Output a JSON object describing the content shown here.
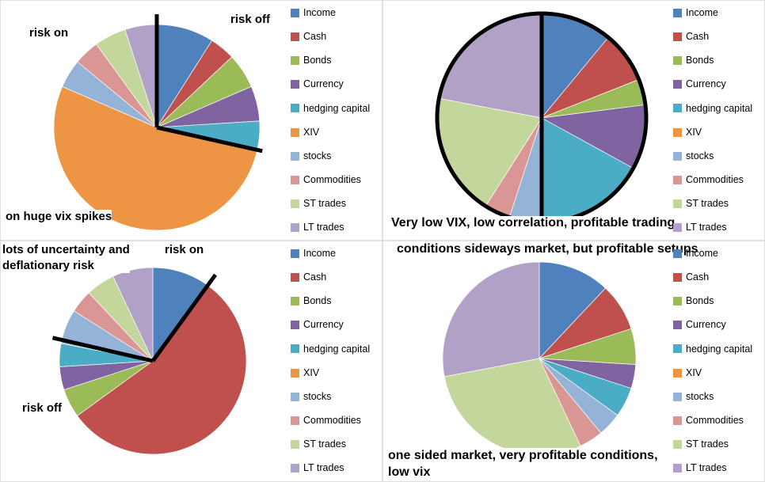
{
  "legend": {
    "position": "right",
    "items": [
      {
        "label": "Income",
        "color": "#4F81BD"
      },
      {
        "label": "Cash",
        "color": "#C0504D"
      },
      {
        "label": "Bonds",
        "color": "#9BBB59"
      },
      {
        "label": "Currency",
        "color": "#8064A2"
      },
      {
        "label": "hedging capital",
        "color": "#4BACC6"
      },
      {
        "label": "XIV",
        "color": "#ED9544"
      },
      {
        "label": "stocks",
        "color": "#95B3D7"
      },
      {
        "label": "Commodities",
        "color": "#D99694"
      },
      {
        "label": "ST trades",
        "color": "#C3D69B"
      },
      {
        "label": "LT trades",
        "color": "#B2A1C7"
      }
    ]
  },
  "chart_data": [
    {
      "type": "pie",
      "position": "top-left",
      "categories": [
        "Income",
        "Cash",
        "Bonds",
        "Currency",
        "hedging capital",
        "XIV",
        "stocks",
        "Commodities",
        "ST trades",
        "LT trades"
      ],
      "values": [
        9,
        4,
        5.5,
        5.5,
        4.5,
        53,
        4.5,
        4,
        5,
        5
      ],
      "legend_position": "right",
      "outline_circle": false,
      "marker_lines": [
        {
          "angle_deg": 0,
          "len": 1.1
        },
        {
          "angle_deg": 102.6,
          "len": 1.05
        }
      ],
      "annotations": {
        "risk_on": "risk on",
        "risk_off": "risk off",
        "caption": "on huge vix spikes"
      }
    },
    {
      "type": "pie",
      "position": "top-right",
      "categories": [
        "Income",
        "Cash",
        "Bonds",
        "Currency",
        "hedging capital",
        "XIV",
        "stocks",
        "Commodities",
        "ST trades",
        "LT trades"
      ],
      "values": [
        11,
        8,
        4,
        10,
        17,
        0,
        5,
        4,
        19,
        22
      ],
      "legend_position": "right",
      "outline_circle": true,
      "marker_lines": [
        {
          "angle_deg": 0,
          "len": 1.02
        },
        {
          "angle_deg": 180,
          "len": 1.02
        }
      ],
      "annotations": {
        "caption_line1": "Very low VIX, low correlation, profitable trading",
        "caption_line2": "conditions sideways market, but profitable setups"
      }
    },
    {
      "type": "pie",
      "position": "bottom-left",
      "categories": [
        "Income",
        "Cash",
        "Bonds",
        "Currency",
        "hedging capital",
        "XIV",
        "stocks",
        "Commodities",
        "ST trades",
        "LT trades"
      ],
      "values": [
        10,
        55,
        5,
        4,
        4,
        0,
        6,
        4,
        5,
        7
      ],
      "legend_position": "right",
      "outline_circle": false,
      "marker_lines": [
        {
          "angle_deg": 36,
          "len": 1.14
        },
        {
          "angle_deg": 283,
          "len": 1.1
        }
      ],
      "annotations": {
        "context": "lots of uncertainty and\ndeflationary risk",
        "risk_on": "risk on",
        "risk_off": "risk off"
      }
    },
    {
      "type": "pie",
      "position": "bottom-right",
      "categories": [
        "Income",
        "Cash",
        "Bonds",
        "Currency",
        "hedging capital",
        "XIV",
        "stocks",
        "Commodities",
        "ST trades",
        "LT trades"
      ],
      "values": [
        12,
        8,
        6,
        4,
        5,
        0,
        4,
        4,
        29,
        28
      ],
      "legend_position": "right",
      "outline_circle": false,
      "marker_lines": [],
      "annotations": {
        "caption": "one sided market, very profitable conditions,\nlow vix"
      }
    }
  ]
}
